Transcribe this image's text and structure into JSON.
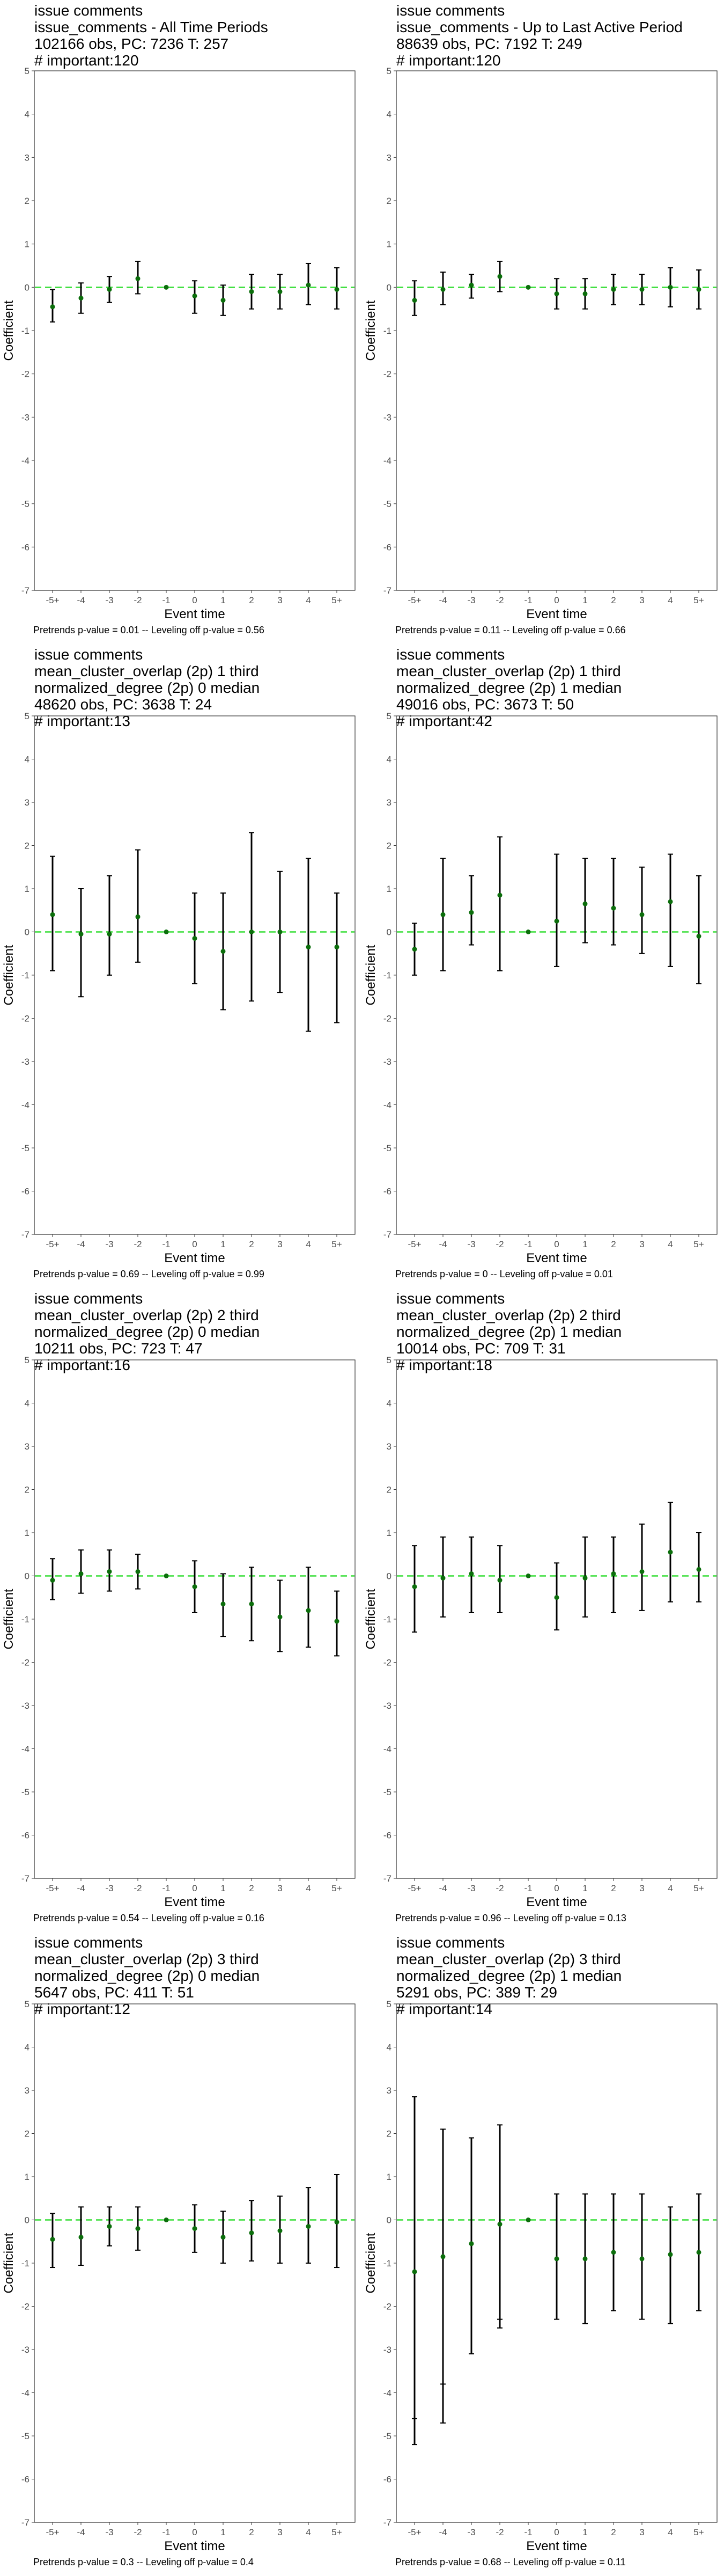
{
  "chart_data": [
    {
      "type": "scatter",
      "title_lines": [
        "issue comments",
        "issue_comments - All Time Periods",
        "102166 obs, PC: 7236 T: 257",
        "# important:120"
      ],
      "xlabel": "Event time",
      "ylabel": "Coefficient",
      "ylim": [
        -7,
        5
      ],
      "yticks": [
        "-7",
        "-6",
        "-5",
        "-4",
        "-3",
        "-2",
        "-1",
        "0",
        "1",
        "2",
        "3",
        "4",
        "5"
      ],
      "categories": [
        "-5+",
        "-4",
        "-3",
        "-2",
        "-1",
        "0",
        "1",
        "2",
        "3",
        "4",
        "5+"
      ],
      "series": [
        {
          "values": [
            -0.45,
            -0.25,
            -0.05,
            0.2,
            0,
            -0.2,
            -0.3,
            -0.1,
            -0.1,
            0.05,
            -0.05
          ],
          "ci_low": [
            -0.8,
            -0.6,
            -0.35,
            -0.15,
            0,
            -0.6,
            -0.65,
            -0.5,
            -0.5,
            -0.4,
            -0.5
          ],
          "ci_high": [
            -0.05,
            0.1,
            0.25,
            0.6,
            0,
            0.15,
            0.05,
            0.3,
            0.3,
            0.55,
            0.45
          ]
        }
      ],
      "reference_line": 0,
      "footnote": "Pretrends p-value = 0.01 -- Leveling off p-value = 0.56"
    },
    {
      "type": "scatter",
      "title_lines": [
        "issue comments",
        "issue_comments - Up to Last Active Period",
        "88639 obs, PC: 7192 T: 249",
        "# important:120"
      ],
      "xlabel": "Event time",
      "ylabel": "Coefficient",
      "ylim": [
        -7,
        5
      ],
      "yticks": [
        "-7",
        "-6",
        "-5",
        "-4",
        "-3",
        "-2",
        "-1",
        "0",
        "1",
        "2",
        "3",
        "4",
        "5"
      ],
      "categories": [
        "-5+",
        "-4",
        "-3",
        "-2",
        "-1",
        "0",
        "1",
        "2",
        "3",
        "4",
        "5+"
      ],
      "series": [
        {
          "values": [
            -0.3,
            -0.05,
            0.05,
            0.25,
            0,
            -0.15,
            -0.15,
            -0.05,
            -0.05,
            0,
            -0.05
          ],
          "ci_low": [
            -0.65,
            -0.4,
            -0.25,
            -0.1,
            0,
            -0.5,
            -0.5,
            -0.4,
            -0.4,
            -0.45,
            -0.5
          ],
          "ci_high": [
            0.15,
            0.35,
            0.3,
            0.6,
            0,
            0.2,
            0.2,
            0.3,
            0.3,
            0.45,
            0.4
          ]
        }
      ],
      "reference_line": 0,
      "footnote": "Pretrends p-value = 0.11 -- Leveling off p-value = 0.66"
    },
    {
      "type": "scatter",
      "title_lines": [
        "issue comments",
        "mean_cluster_overlap (2p) 1 third",
        "normalized_degree (2p) 0 median",
        "48620 obs, PC: 3638 T: 24",
        "# important:13"
      ],
      "xlabel": "Event time",
      "ylabel": "Coefficient",
      "ylim": [
        -7,
        5
      ],
      "yticks": [
        "-7",
        "-6",
        "-5",
        "-4",
        "-3",
        "-2",
        "-1",
        "0",
        "1",
        "2",
        "3",
        "4",
        "5"
      ],
      "categories": [
        "-5+",
        "-4",
        "-3",
        "-2",
        "-1",
        "0",
        "1",
        "2",
        "3",
        "4",
        "5+"
      ],
      "series": [
        {
          "values": [
            0.4,
            -0.05,
            -0.05,
            0.35,
            0,
            -0.15,
            -0.45,
            0,
            0,
            -0.35,
            -0.35
          ],
          "ci_low": [
            -0.9,
            -1.5,
            -1.0,
            -0.7,
            0,
            -1.2,
            -1.8,
            -1.6,
            -1.4,
            -2.3,
            -2.1
          ],
          "ci_high": [
            1.75,
            1.0,
            1.3,
            1.9,
            0,
            0.9,
            0.9,
            2.3,
            1.4,
            1.7,
            0.9
          ]
        }
      ],
      "reference_line": 0,
      "footnote": "Pretrends p-value = 0.69 -- Leveling off p-value = 0.99"
    },
    {
      "type": "scatter",
      "title_lines": [
        "issue comments",
        "mean_cluster_overlap (2p) 1 third",
        "normalized_degree (2p) 1 median",
        "49016 obs, PC: 3673 T: 50",
        "# important:42"
      ],
      "xlabel": "Event time",
      "ylabel": "Coefficient",
      "ylim": [
        -7,
        5
      ],
      "yticks": [
        "-7",
        "-6",
        "-5",
        "-4",
        "-3",
        "-2",
        "-1",
        "0",
        "1",
        "2",
        "3",
        "4",
        "5"
      ],
      "categories": [
        "-5+",
        "-4",
        "-3",
        "-2",
        "-1",
        "0",
        "1",
        "2",
        "3",
        "4",
        "5+"
      ],
      "series": [
        {
          "values": [
            -0.4,
            0.4,
            0.45,
            0.85,
            0,
            0.25,
            0.65,
            0.55,
            0.4,
            0.7,
            -0.1
          ],
          "ci_low": [
            -1.0,
            -0.9,
            -0.3,
            -0.9,
            0,
            -0.8,
            -0.25,
            -0.3,
            -0.5,
            -0.8,
            -1.2
          ],
          "ci_high": [
            0.2,
            1.7,
            1.3,
            2.2,
            0,
            1.8,
            1.7,
            1.7,
            1.5,
            1.8,
            1.3
          ]
        }
      ],
      "reference_line": 0,
      "footnote": "Pretrends p-value = 0 -- Leveling off p-value = 0.01"
    },
    {
      "type": "scatter",
      "title_lines": [
        "issue comments",
        "mean_cluster_overlap (2p) 2 third",
        "normalized_degree (2p) 0 median",
        "10211 obs, PC: 723 T: 47",
        "# important:16"
      ],
      "xlabel": "Event time",
      "ylabel": "Coefficient",
      "ylim": [
        -7,
        5
      ],
      "yticks": [
        "-7",
        "-6",
        "-5",
        "-4",
        "-3",
        "-2",
        "-1",
        "0",
        "1",
        "2",
        "3",
        "4",
        "5"
      ],
      "categories": [
        "-5+",
        "-4",
        "-3",
        "-2",
        "-1",
        "0",
        "1",
        "2",
        "3",
        "4",
        "5+"
      ],
      "series": [
        {
          "values": [
            -0.1,
            0.05,
            0.1,
            0.1,
            0,
            -0.25,
            -0.65,
            -0.65,
            -0.95,
            -0.8,
            -1.05
          ],
          "ci_low": [
            -0.55,
            -0.4,
            -0.35,
            -0.3,
            0,
            -0.85,
            -1.4,
            -1.5,
            -1.75,
            -1.65,
            -1.85
          ],
          "ci_high": [
            0.4,
            0.6,
            0.6,
            0.5,
            0,
            0.35,
            0.05,
            0.2,
            -0.1,
            0.2,
            -0.35
          ]
        }
      ],
      "reference_line": 0,
      "footnote": "Pretrends p-value = 0.54 -- Leveling off p-value = 0.16"
    },
    {
      "type": "scatter",
      "title_lines": [
        "issue comments",
        "mean_cluster_overlap (2p) 2 third",
        "normalized_degree (2p) 1 median",
        "10014 obs, PC: 709 T: 31",
        "# important:18"
      ],
      "xlabel": "Event time",
      "ylabel": "Coefficient",
      "ylim": [
        -7,
        5
      ],
      "yticks": [
        "-7",
        "-6",
        "-5",
        "-4",
        "-3",
        "-2",
        "-1",
        "0",
        "1",
        "2",
        "3",
        "4",
        "5"
      ],
      "categories": [
        "-5+",
        "-4",
        "-3",
        "-2",
        "-1",
        "0",
        "1",
        "2",
        "3",
        "4",
        "5+"
      ],
      "series": [
        {
          "values": [
            -0.25,
            -0.05,
            0.05,
            -0.1,
            0,
            -0.5,
            -0.05,
            0.05,
            0.1,
            0.55,
            0.15
          ],
          "ci_low": [
            -1.3,
            -0.95,
            -0.85,
            -0.85,
            0,
            -1.25,
            -0.95,
            -0.85,
            -0.8,
            -0.6,
            -0.6
          ],
          "ci_high": [
            0.7,
            0.9,
            0.9,
            0.7,
            0,
            0.3,
            0.9,
            0.9,
            1.2,
            1.7,
            1.0
          ]
        }
      ],
      "reference_line": 0,
      "footnote": "Pretrends p-value = 0.96 -- Leveling off p-value = 0.13"
    },
    {
      "type": "scatter",
      "title_lines": [
        "issue comments",
        "mean_cluster_overlap (2p) 3 third",
        "normalized_degree (2p) 0 median",
        "5647 obs, PC: 411 T: 51",
        "# important:12"
      ],
      "xlabel": "Event time",
      "ylabel": "Coefficient",
      "ylim": [
        -7,
        5
      ],
      "yticks": [
        "-7",
        "-6",
        "-5",
        "-4",
        "-3",
        "-2",
        "-1",
        "0",
        "1",
        "2",
        "3",
        "4",
        "5"
      ],
      "categories": [
        "-5+",
        "-4",
        "-3",
        "-2",
        "-1",
        "0",
        "1",
        "2",
        "3",
        "4",
        "5+"
      ],
      "series": [
        {
          "values": [
            -0.45,
            -0.4,
            -0.15,
            -0.2,
            0,
            -0.2,
            -0.4,
            -0.3,
            -0.25,
            -0.15,
            -0.05
          ],
          "ci_low": [
            -1.1,
            -1.05,
            -0.6,
            -0.7,
            0,
            -0.75,
            -1.0,
            -0.95,
            -1.0,
            -1.0,
            -1.1
          ],
          "ci_high": [
            0.15,
            0.3,
            0.3,
            0.3,
            0,
            0.35,
            0.2,
            0.45,
            0.55,
            0.75,
            1.05
          ]
        }
      ],
      "reference_line": 0,
      "footnote": "Pretrends p-value = 0.3 -- Leveling off p-value = 0.4"
    },
    {
      "type": "scatter",
      "title_lines": [
        "issue comments",
        "mean_cluster_overlap (2p) 3 third",
        "normalized_degree (2p) 1 median",
        "5291 obs, PC: 389 T: 29",
        "# important:14"
      ],
      "xlabel": "Event time",
      "ylabel": "Coefficient",
      "ylim": [
        -7,
        5
      ],
      "yticks": [
        "-7",
        "-6",
        "-5",
        "-4",
        "-3",
        "-2",
        "-1",
        "0",
        "1",
        "2",
        "3",
        "4",
        "5"
      ],
      "categories": [
        "-5+",
        "-4",
        "-3",
        "-2",
        "-1",
        "0",
        "1",
        "2",
        "3",
        "4",
        "5+"
      ],
      "series": [
        {
          "values": [
            -1.2,
            -0.85,
            -0.55,
            -0.1,
            0,
            -0.9,
            -0.9,
            -0.75,
            -0.9,
            -0.8,
            -0.75
          ],
          "ci_low": [
            -5.2,
            -4.7,
            -3.1,
            -2.5,
            0,
            -2.3,
            -2.4,
            -2.1,
            -2.3,
            -2.4,
            -2.1
          ],
          "ci_high": [
            2.85,
            2.1,
            1.9,
            2.2,
            0,
            0.6,
            0.6,
            0.6,
            0.6,
            0.3,
            0.6
          ]
        }
      ],
      "inner_low": [
        -4.6,
        -3.8,
        null,
        -2.3,
        null,
        null,
        null,
        null,
        null,
        null,
        null
      ],
      "reference_line": 0,
      "footnote": "Pretrends p-value = 0.68 -- Leveling off p-value = 0.11"
    }
  ],
  "colors": {
    "point": "#0b6e0b",
    "reference_line": "#33dd33",
    "error_bar": "#000000",
    "frame": "#333333"
  }
}
